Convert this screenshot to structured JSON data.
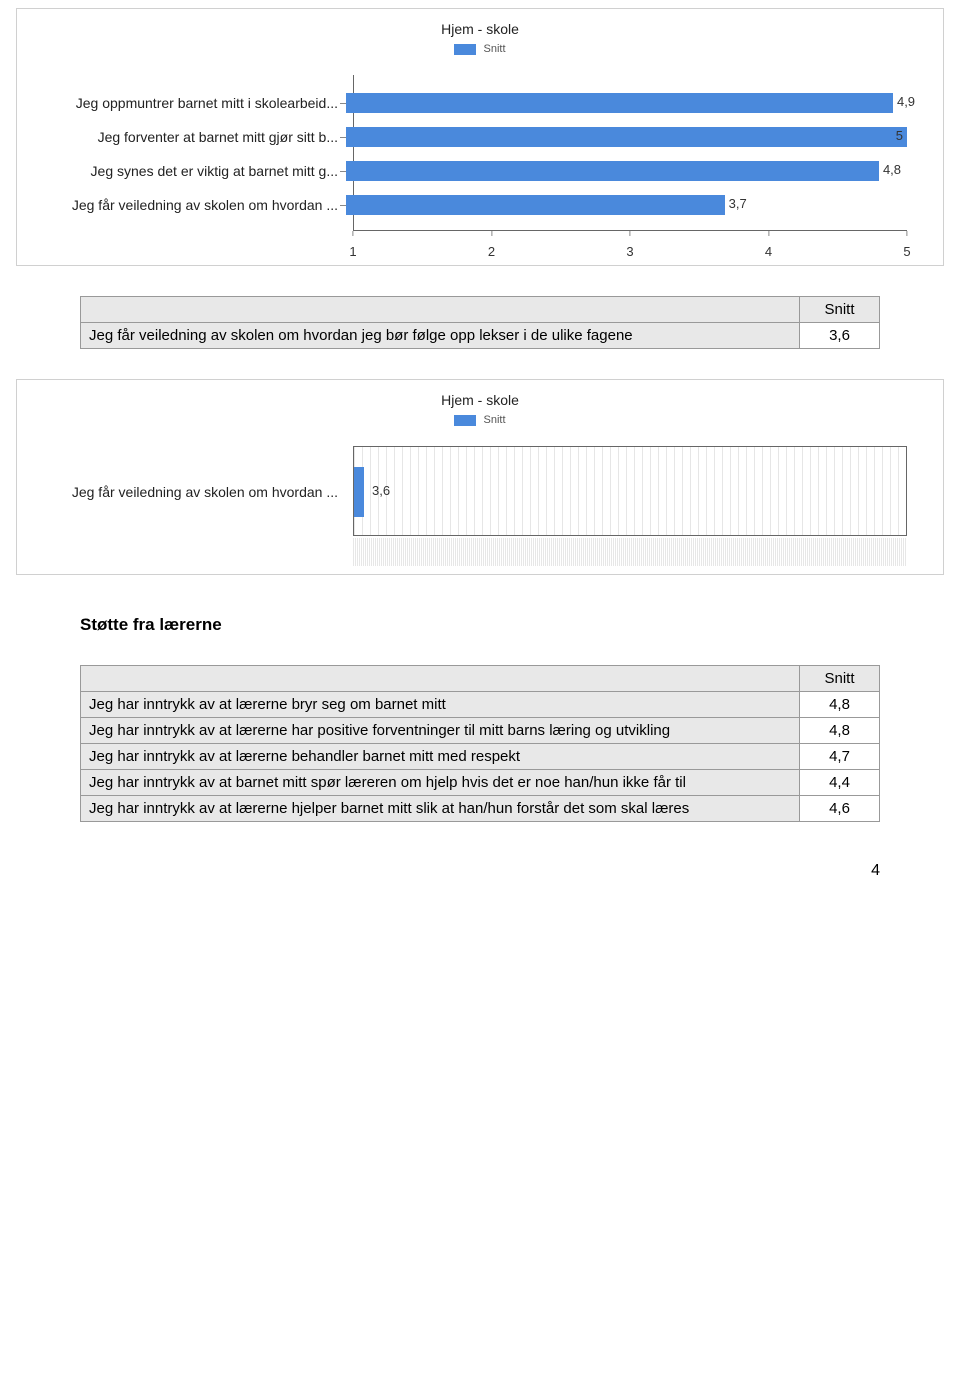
{
  "chart1": {
    "type": "bar-horizontal",
    "title": "Hjem - skole",
    "legend_label": "Snitt",
    "bar_color": "#4a89dc",
    "legend_swatch_color": "#4a89dc",
    "title_color": "#222222",
    "axis_color": "#666666",
    "x_min": 1,
    "x_max": 5,
    "x_ticks": [
      "1",
      "2",
      "3",
      "4",
      "5"
    ],
    "rows": [
      {
        "label": "Jeg oppmuntrer barnet mitt i skolearbeid...",
        "value": 4.9,
        "value_label": "4,9"
      },
      {
        "label": "Jeg forventer at barnet mitt gjør sitt b...",
        "value": 5.0,
        "value_label": "5"
      },
      {
        "label": "Jeg synes det er viktig at barnet mitt g...",
        "value": 4.8,
        "value_label": "4,8"
      },
      {
        "label": "Jeg får veiledning av skolen om hvordan ...",
        "value": 3.7,
        "value_label": "3,7"
      }
    ]
  },
  "table1": {
    "header": "Snitt",
    "rows": [
      {
        "label": "Jeg får veiledning av skolen om hvordan jeg bør følge opp lekser i de ulike fagene",
        "value": "3,6"
      }
    ]
  },
  "chart2": {
    "type": "bar-horizontal",
    "title": "Hjem - skole",
    "legend_label": "Snitt",
    "bar_color": "#4a89dc",
    "legend_swatch_color": "#4a89dc",
    "row_label": "Jeg får veiledning av skolen om hvordan ...",
    "value": 3.6,
    "value_label": "3,6",
    "grid_color": "#e6e6e6",
    "border_color": "#666666"
  },
  "section_heading": "Støtte fra lærerne",
  "table2": {
    "header": "Snitt",
    "rows": [
      {
        "label": "Jeg har inntrykk av at lærerne bryr seg om barnet mitt",
        "value": "4,8"
      },
      {
        "label": "Jeg har inntrykk av at lærerne har positive forventninger til mitt barns læring og utvikling",
        "value": "4,8"
      },
      {
        "label": "Jeg har inntrykk av at lærerne behandler barnet mitt med respekt",
        "value": "4,7"
      },
      {
        "label": "Jeg har inntrykk av at barnet mitt spør læreren om hjelp hvis det er noe han/hun ikke får til",
        "value": "4,4"
      },
      {
        "label": "Jeg har inntrykk av at lærerne hjelper barnet mitt slik at han/hun forstår det som skal læres",
        "value": "4,6"
      }
    ]
  },
  "page_number": "4"
}
